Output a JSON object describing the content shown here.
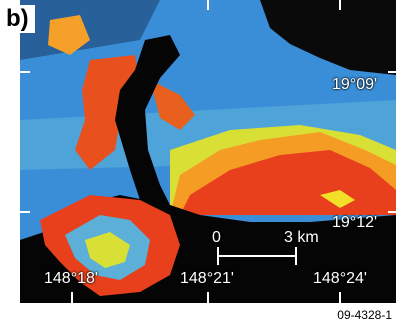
{
  "panel_label": "b)",
  "latitude_labels": [
    "19°09'",
    "19°12'"
  ],
  "longitude_labels": [
    "148°18'",
    "148°21'",
    "148°24'"
  ],
  "scale_bar": {
    "start_label": "0",
    "end_label": "3 km"
  },
  "figure_id": "09-4328-1",
  "colors": {
    "background": "#000000",
    "land": "#050505",
    "low": "#3a8ed8",
    "mid": "#f2e028",
    "high": "#e8401c",
    "text": "#ffffff"
  }
}
